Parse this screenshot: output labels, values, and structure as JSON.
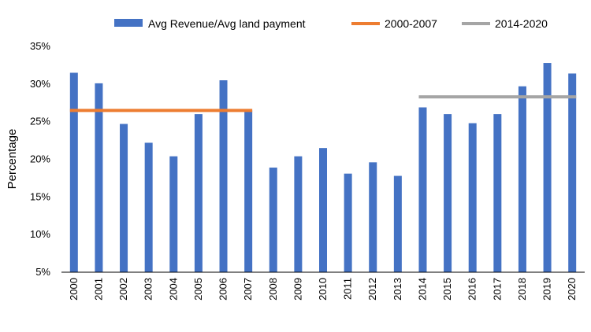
{
  "chart_data": {
    "type": "bar",
    "title": "",
    "xlabel": "",
    "ylabel": "Percentage",
    "ylim": [
      5,
      35
    ],
    "yticks": [
      "5%",
      "10%",
      "15%",
      "20%",
      "25%",
      "30%",
      "35%"
    ],
    "categories": [
      "2000",
      "2001",
      "2002",
      "2003",
      "2004",
      "2005",
      "2006",
      "2007",
      "2008",
      "2009",
      "2010",
      "2011",
      "2012",
      "2013",
      "2014",
      "2015",
      "2016",
      "2017",
      "2018",
      "2019",
      "2020"
    ],
    "series": [
      {
        "name": "Avg Revenue/Avg land payment",
        "values": [
          31.5,
          30.1,
          24.7,
          22.2,
          20.4,
          26.0,
          30.5,
          26.5,
          18.9,
          20.4,
          21.5,
          18.1,
          19.6,
          17.8,
          26.9,
          26.0,
          24.8,
          26.0,
          29.7,
          32.8,
          31.4
        ]
      }
    ],
    "reference_lines": [
      {
        "name": "2000-2007",
        "value": 26.5,
        "from": "2000",
        "to": "2007"
      },
      {
        "name": "2014-2020",
        "value": 28.3,
        "from": "2014",
        "to": "2020"
      }
    ],
    "legend": {
      "position": "top",
      "items": [
        "Avg Revenue/Avg land payment",
        "2000-2007",
        "2014-2020"
      ]
    },
    "colors": {
      "bar": "#4472C4",
      "line_2000_2007": "#ED7D31",
      "line_2014_2020": "#A5A5A5",
      "axis": "#000000"
    }
  }
}
